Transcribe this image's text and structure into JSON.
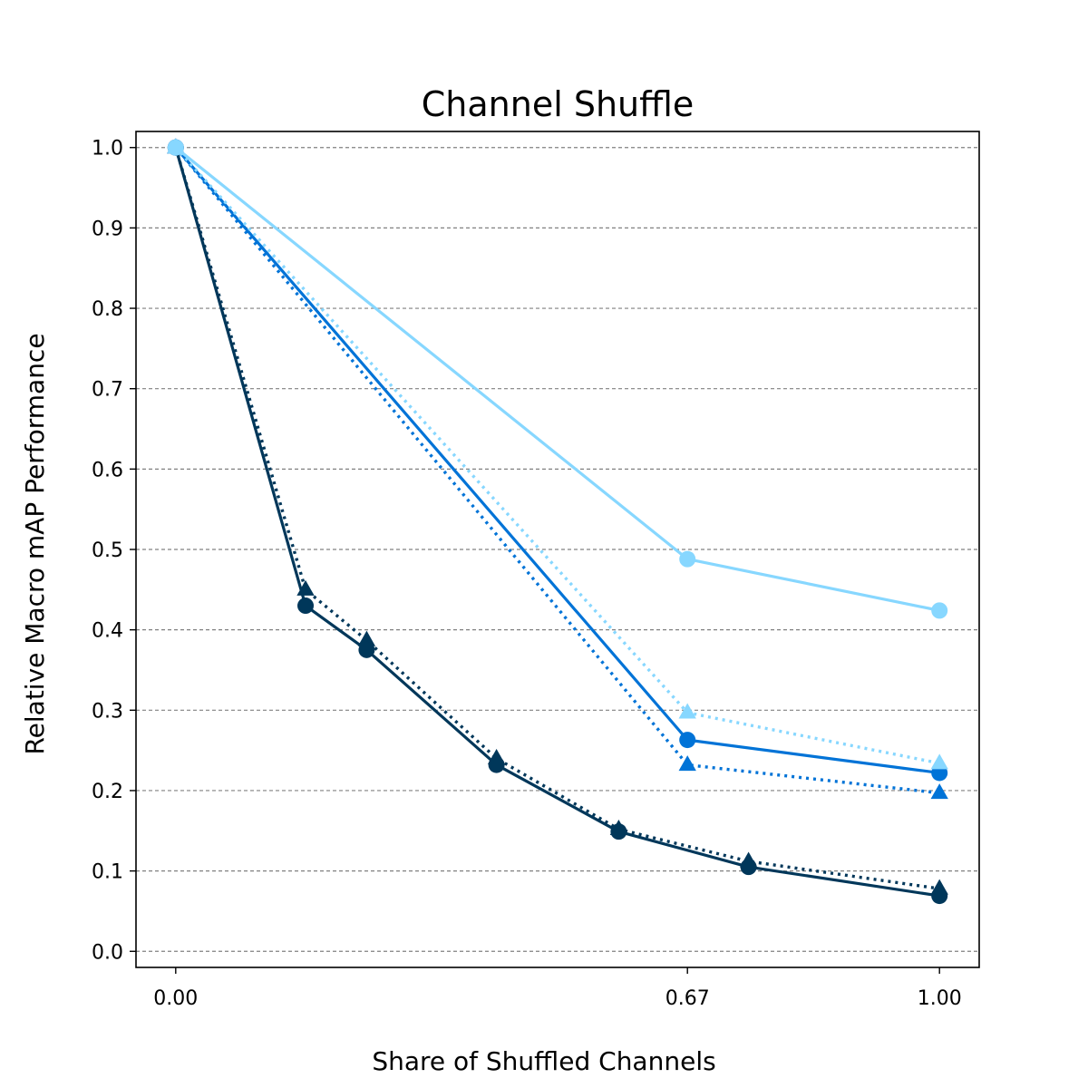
{
  "chart_data": {
    "type": "line",
    "title": "Channel Shuffle",
    "xlabel": "Share of Shuffled Channels",
    "ylabel": "Relative Macro mAP Performance",
    "xlim": [
      -0.052,
      1.052
    ],
    "ylim": [
      -0.02,
      1.02
    ],
    "xticks": [
      {
        "value": 0.0,
        "label": "0.00"
      },
      {
        "value": 0.67,
        "label": "0.67"
      },
      {
        "value": 1.0,
        "label": "1.00"
      }
    ],
    "yticks": [
      {
        "value": 0.0,
        "label": "0.0"
      },
      {
        "value": 0.1,
        "label": "0.1"
      },
      {
        "value": 0.2,
        "label": "0.2"
      },
      {
        "value": 0.3,
        "label": "0.3"
      },
      {
        "value": 0.4,
        "label": "0.4"
      },
      {
        "value": 0.5,
        "label": "0.5"
      },
      {
        "value": 0.6,
        "label": "0.6"
      },
      {
        "value": 0.7,
        "label": "0.7"
      },
      {
        "value": 0.8,
        "label": "0.8"
      },
      {
        "value": 0.9,
        "label": "0.9"
      },
      {
        "value": 1.0,
        "label": "1.0"
      }
    ],
    "grid": "horizontal-dashed",
    "series": [
      {
        "color": "#00375a",
        "line": "dotted",
        "marker": "triangle",
        "x": [
          0.0,
          0.17,
          0.25,
          0.42,
          0.58,
          0.75,
          1.0
        ],
        "y": [
          1.0,
          0.45,
          0.387,
          0.24,
          0.152,
          0.112,
          0.078
        ]
      },
      {
        "color": "#00375a",
        "line": "solid",
        "marker": "circle",
        "x": [
          0.0,
          0.17,
          0.25,
          0.42,
          0.58,
          0.75,
          1.0
        ],
        "y": [
          1.0,
          0.43,
          0.375,
          0.232,
          0.149,
          0.105,
          0.069
        ]
      },
      {
        "color": "#0073d7",
        "line": "dotted",
        "marker": "triangle",
        "x": [
          0.0,
          0.67,
          1.0
        ],
        "y": [
          1.0,
          0.232,
          0.197
        ]
      },
      {
        "color": "#0073d7",
        "line": "solid",
        "marker": "circle",
        "x": [
          0.0,
          0.67,
          1.0
        ],
        "y": [
          1.0,
          0.263,
          0.222
        ]
      },
      {
        "color": "#87d7ff",
        "line": "dotted",
        "marker": "triangle",
        "x": [
          0.0,
          0.67,
          1.0
        ],
        "y": [
          1.0,
          0.297,
          0.234
        ]
      },
      {
        "color": "#87d7ff",
        "line": "solid",
        "marker": "circle",
        "x": [
          0.0,
          0.67,
          1.0
        ],
        "y": [
          1.0,
          0.488,
          0.424
        ]
      }
    ]
  }
}
